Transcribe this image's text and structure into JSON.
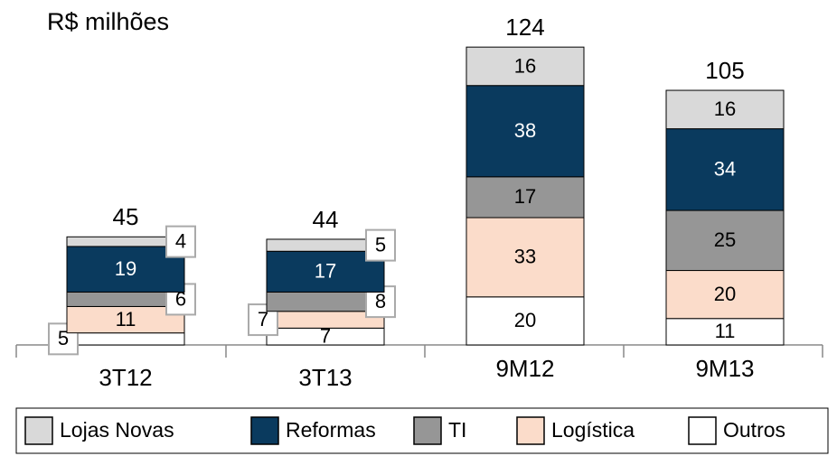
{
  "chart_data": {
    "type": "stacked-bar",
    "title": "R$ milhões",
    "categories": [
      "3T12",
      "3T13",
      "9M12",
      "9M13"
    ],
    "series": [
      {
        "name": "Outros",
        "color": "#ffffff",
        "values": [
          5,
          7,
          20,
          11
        ]
      },
      {
        "name": "Logística",
        "color": "#fbdcca",
        "values": [
          11,
          7,
          33,
          20
        ]
      },
      {
        "name": "TI",
        "color": "#969696",
        "values": [
          6,
          8,
          17,
          25
        ]
      },
      {
        "name": "Reformas",
        "color": "#0a3a5e",
        "values": [
          19,
          17,
          38,
          34
        ]
      },
      {
        "name": "Lojas Novas",
        "color": "#d9d9d9",
        "values": [
          4,
          5,
          16,
          16
        ]
      }
    ],
    "totals": [
      45,
      44,
      124,
      105
    ]
  }
}
